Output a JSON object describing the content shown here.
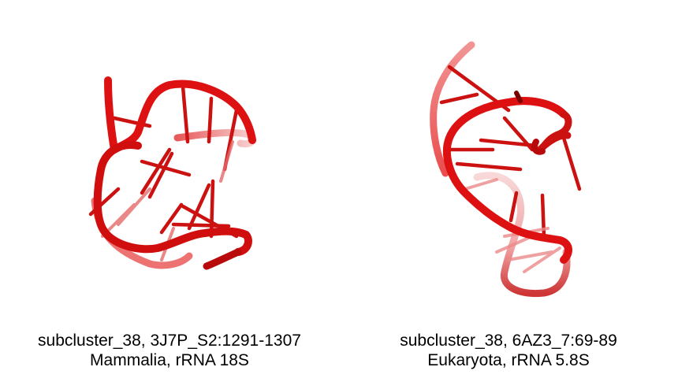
{
  "panels": [
    {
      "caption_line1": "subcluster_38, 3J7P_S2:1291-1307",
      "caption_line2": "Mammalia, rRNA 18S",
      "image_description": "rna-structure-cartoon"
    },
    {
      "caption_line1": "subcluster_38, 6AZ3_7:69-89",
      "caption_line2": "Eukaryota, rRNA 5.8S",
      "image_description": "rna-structure-cartoon"
    }
  ],
  "colors": {
    "backbone": "#dd1111",
    "backbone_dark": "#a80000",
    "backbone_faded": "#f2a0a0",
    "text": "#000000"
  }
}
